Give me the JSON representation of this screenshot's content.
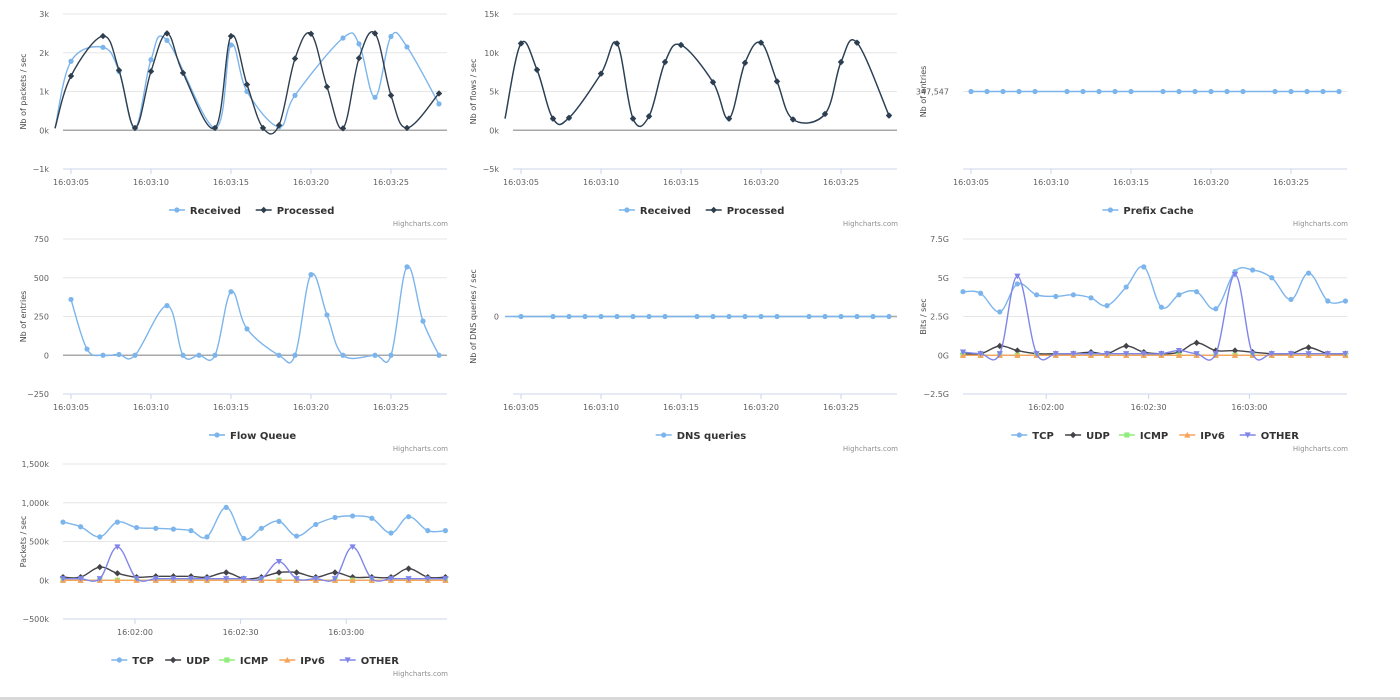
{
  "credits": "Highcharts.com",
  "colors": {
    "received": "#7cb5ec",
    "processed": "#2f3e4e",
    "tcp": "#7cb5ec",
    "udp": "#434348",
    "icmp": "#90ed7d",
    "ipv6": "#f7a35c",
    "other": "#8085e9",
    "grid": "#e6e6e6",
    "zero": "#a8a8a8"
  },
  "chart_data": [
    {
      "id": "packets",
      "type": "line",
      "ylabel": "Nb of packets / sec",
      "xticks": [
        "16:03:05",
        "16:03:10",
        "16:03:15",
        "16:03:20",
        "16:03:25"
      ],
      "yticks": [
        "3k",
        "2k",
        "1k",
        "0k",
        "−1k"
      ],
      "ylim": [
        -1000,
        3000
      ],
      "xlim": [
        0,
        24
      ],
      "x_tick_values": [
        0.5,
        5.5,
        10.5,
        15.5,
        20.5
      ],
      "y_tick_values": [
        3000,
        2000,
        1000,
        0,
        -1000
      ],
      "series": [
        {
          "name": "Received",
          "x": [
            -0.5,
            0.5,
            2.5,
            3.5,
            4.5,
            5.5,
            6.5,
            9.5,
            10.5,
            11.5,
            13.5,
            14.5,
            17.5,
            18.5,
            19.5,
            20.5,
            21.5,
            23.5
          ],
          "values": [
            50,
            1780,
            2140,
            1520,
            60,
            1820,
            2320,
            60,
            2200,
            1000,
            90,
            900,
            2380,
            2230,
            850,
            2420,
            2150,
            680
          ],
          "marker": "circle"
        },
        {
          "name": "Processed",
          "x": [
            -0.5,
            0.5,
            2.5,
            3.5,
            4.5,
            5.5,
            6.5,
            7.5,
            9.5,
            10.5,
            11.5,
            12.5,
            13.5,
            14.5,
            15.5,
            16.5,
            17.5,
            18.5,
            19.5,
            20.5,
            21.5,
            23.5
          ],
          "values": [
            50,
            1400,
            2430,
            1550,
            60,
            1520,
            2500,
            1480,
            60,
            2430,
            1180,
            60,
            130,
            1850,
            2490,
            1120,
            50,
            1860,
            2500,
            900,
            60,
            950
          ],
          "marker": "diamond"
        }
      ]
    },
    {
      "id": "flows",
      "type": "line",
      "ylabel": "Nb of flows / sec",
      "xticks": [
        "16:03:05",
        "16:03:10",
        "16:03:15",
        "16:03:20",
        "16:03:25"
      ],
      "yticks": [
        "15k",
        "10k",
        "5k",
        "0k",
        "−5k"
      ],
      "ylim": [
        -5000,
        15000
      ],
      "xlim": [
        0,
        24
      ],
      "x_tick_values": [
        0.5,
        5.5,
        10.5,
        15.5,
        20.5
      ],
      "y_tick_values": [
        15000,
        10000,
        5000,
        0,
        -5000
      ],
      "series": [
        {
          "name": "Received",
          "x": [
            -0.5,
            0.5,
            1.5,
            2.5,
            3.5,
            5.5,
            6.5,
            7.5,
            8.5,
            9.5,
            10.5,
            12.5,
            13.5,
            14.5,
            15.5,
            16.5,
            17.5,
            19.5,
            20.5,
            21.5,
            23.5
          ],
          "values": [
            1500,
            11200,
            7800,
            1500,
            1600,
            7300,
            11200,
            1500,
            1800,
            8800,
            11000,
            6200,
            1500,
            8700,
            11300,
            6300,
            1400,
            2100,
            8800,
            11300,
            1900
          ],
          "marker": "circle"
        },
        {
          "name": "Processed",
          "x": [
            -0.5,
            0.5,
            1.5,
            2.5,
            3.5,
            5.5,
            6.5,
            7.5,
            8.5,
            9.5,
            10.5,
            12.5,
            13.5,
            14.5,
            15.5,
            16.5,
            17.5,
            19.5,
            20.5,
            21.5,
            23.5
          ],
          "values": [
            1500,
            11200,
            7800,
            1500,
            1600,
            7300,
            11200,
            1500,
            1800,
            8800,
            11000,
            6200,
            1500,
            8700,
            11300,
            6300,
            1400,
            2100,
            8800,
            11300,
            1900
          ],
          "marker": "diamond"
        }
      ]
    },
    {
      "id": "prefix",
      "type": "line",
      "ylabel": "Nb of entries",
      "xticks": [
        "16:03:05",
        "16:03:10",
        "16:03:15",
        "16:03:20",
        "16:03:25"
      ],
      "yticks": [
        "347,547"
      ],
      "ylim": [
        0,
        1
      ],
      "xlim": [
        0,
        24
      ],
      "x_tick_values": [
        0.5,
        5.5,
        10.5,
        15.5,
        20.5
      ],
      "y_tick_values": [
        0.5
      ],
      "series": [
        {
          "name": "Prefix Cache",
          "x": [
            0.5,
            1.5,
            2.5,
            3.5,
            4.5,
            6.5,
            7.5,
            8.5,
            9.5,
            10.5,
            12.5,
            13.5,
            14.5,
            15.5,
            16.5,
            17.5,
            19.5,
            20.5,
            21.5,
            22.5,
            23.5
          ],
          "values": [
            0.5,
            0.5,
            0.5,
            0.5,
            0.5,
            0.5,
            0.5,
            0.5,
            0.5,
            0.5,
            0.5,
            0.5,
            0.5,
            0.5,
            0.5,
            0.5,
            0.5,
            0.5,
            0.5,
            0.5,
            0.5
          ],
          "marker": "circle"
        }
      ]
    },
    {
      "id": "flowqueue",
      "type": "line",
      "ylabel": "Nb of entries",
      "xticks": [
        "16:03:05",
        "16:03:10",
        "16:03:15",
        "16:03:20",
        "16:03:25"
      ],
      "yticks": [
        "750",
        "500",
        "250",
        "0",
        "−250"
      ],
      "ylim": [
        -250,
        750
      ],
      "xlim": [
        0,
        24
      ],
      "x_tick_values": [
        0.5,
        5.5,
        10.5,
        15.5,
        20.5
      ],
      "y_tick_values": [
        750,
        500,
        250,
        0,
        -250
      ],
      "series": [
        {
          "name": "Flow Queue",
          "x": [
            0.5,
            1.5,
            2.5,
            3.5,
            4.5,
            6.5,
            7.5,
            8.5,
            9.5,
            10.5,
            11.5,
            13.5,
            14.5,
            15.5,
            16.5,
            17.5,
            19.5,
            20.5,
            21.5,
            22.5,
            23.5
          ],
          "values": [
            360,
            40,
            0,
            5,
            0,
            320,
            0,
            0,
            0,
            410,
            170,
            0,
            0,
            520,
            260,
            0,
            0,
            0,
            570,
            220,
            0
          ],
          "marker": "circle"
        }
      ]
    },
    {
      "id": "dns",
      "type": "line",
      "ylabel": "Nb of DNS queries / sec",
      "xticks": [
        "16:03:05",
        "16:03:10",
        "16:03:15",
        "16:03:20",
        "16:03:25"
      ],
      "yticks": [
        "0"
      ],
      "ylim": [
        0,
        1
      ],
      "xlim": [
        0,
        24
      ],
      "x_tick_values": [
        0.5,
        5.5,
        10.5,
        15.5,
        20.5
      ],
      "y_tick_values": [
        0.5
      ],
      "series": [
        {
          "name": "DNS queries",
          "x": [
            -0.5,
            0.5,
            2.5,
            3.5,
            4.5,
            5.5,
            6.5,
            7.5,
            8.5,
            9.5,
            11.5,
            12.5,
            13.5,
            14.5,
            15.5,
            16.5,
            18.5,
            19.5,
            20.5,
            21.5,
            22.5,
            23.5
          ],
          "values": [
            0.5,
            0.5,
            0.5,
            0.5,
            0.5,
            0.5,
            0.5,
            0.5,
            0.5,
            0.5,
            0.5,
            0.5,
            0.5,
            0.5,
            0.5,
            0.5,
            0.5,
            0.5,
            0.5,
            0.5,
            0.5,
            0.5
          ],
          "marker": "circle"
        }
      ]
    },
    {
      "id": "bits",
      "type": "line",
      "ylabel": "Bits / sec",
      "xticks": [
        "16:02:00",
        "16:02:30",
        "16:03:00"
      ],
      "yticks": [
        "7.5G",
        "5G",
        "2.5G",
        "0G",
        "−2.5G"
      ],
      "ylim": [
        -2.5,
        7.5
      ],
      "xlim": [
        0,
        24
      ],
      "x_tick_values": [
        5.2,
        11.6,
        17.9
      ],
      "y_tick_values": [
        7.5,
        5,
        2.5,
        0,
        -2.5
      ],
      "series": [
        {
          "name": "TCP",
          "x": [
            0,
            1.1,
            2.3,
            3.4,
            4.6,
            5.8,
            6.9,
            8,
            9,
            10.2,
            11.3,
            12.4,
            13.5,
            14.6,
            15.8,
            17,
            18.1,
            19.3,
            20.5,
            21.6,
            22.8,
            23.9
          ],
          "values": [
            4.1,
            4,
            2.8,
            4.6,
            3.9,
            3.8,
            3.9,
            3.7,
            3.2,
            4.4,
            5.7,
            3.1,
            3.9,
            4.1,
            3,
            5.4,
            5.5,
            5,
            3.6,
            5.3,
            3.5,
            3.5
          ],
          "marker": "circle"
        },
        {
          "name": "UDP",
          "x": [
            0,
            1.1,
            2.3,
            3.4,
            4.6,
            5.8,
            6.9,
            8,
            9,
            10.2,
            11.3,
            12.4,
            13.5,
            14.6,
            15.8,
            17,
            18.1,
            19.3,
            20.5,
            21.6,
            22.8,
            23.9
          ],
          "values": [
            0.1,
            0.1,
            0.6,
            0.3,
            0.1,
            0.1,
            0.1,
            0.2,
            0.1,
            0.6,
            0.2,
            0.1,
            0.2,
            0.8,
            0.3,
            0.3,
            0.2,
            0.1,
            0.1,
            0.5,
            0.1,
            0.1
          ],
          "marker": "diamond"
        },
        {
          "name": "ICMP",
          "x": [
            0,
            1.1,
            2.3,
            3.4,
            4.6,
            5.8,
            6.9,
            8,
            9,
            10.2,
            11.3,
            12.4,
            13.5,
            14.6,
            15.8,
            17,
            18.1,
            19.3,
            20.5,
            21.6,
            22.8,
            23.9
          ],
          "values": [
            0,
            0,
            0,
            0,
            0,
            0,
            0,
            0,
            0,
            0,
            0,
            0,
            0,
            0,
            0,
            0,
            0,
            0,
            0,
            0,
            0,
            0
          ],
          "marker": "square"
        },
        {
          "name": "IPv6",
          "x": [
            0,
            1.1,
            2.3,
            3.4,
            4.6,
            5.8,
            6.9,
            8,
            9,
            10.2,
            11.3,
            12.4,
            13.5,
            14.6,
            15.8,
            17,
            18.1,
            19.3,
            20.5,
            21.6,
            22.8,
            23.9
          ],
          "values": [
            0,
            0,
            0,
            0,
            0,
            0,
            0,
            0,
            0,
            0,
            0,
            0,
            0,
            0,
            0,
            0,
            0,
            0,
            0,
            0,
            0,
            0
          ],
          "marker": "triangle"
        },
        {
          "name": "OTHER",
          "x": [
            0,
            1.1,
            2.3,
            3.4,
            4.6,
            5.8,
            6.9,
            8,
            9,
            10.2,
            11.3,
            12.4,
            13.5,
            14.6,
            15.8,
            17,
            18.1,
            19.3,
            20.5,
            21.6,
            22.8,
            23.9
          ],
          "values": [
            0.2,
            0.1,
            0.1,
            5.1,
            0.1,
            0.1,
            0.1,
            0.1,
            0.1,
            0.1,
            0.1,
            0.1,
            0.3,
            0.1,
            0.1,
            5.2,
            0.1,
            0.1,
            0.1,
            0.1,
            0.1,
            0.1
          ],
          "marker": "triangle-down"
        }
      ]
    },
    {
      "id": "pps",
      "type": "line",
      "ylabel": "Packets / sec",
      "xticks": [
        "16:02:00",
        "16:02:30",
        "16:03:00"
      ],
      "yticks": [
        "1,500k",
        "1,000k",
        "500k",
        "0k",
        "−500k"
      ],
      "ylim": [
        -500,
        1500
      ],
      "xlim": [
        0,
        24
      ],
      "x_tick_values": [
        4.5,
        11.1,
        17.7
      ],
      "y_tick_values": [
        1500,
        1000,
        500,
        0,
        -500
      ],
      "series": [
        {
          "name": "TCP",
          "x": [
            0,
            1.1,
            2.3,
            3.4,
            4.6,
            5.8,
            6.9,
            8,
            9,
            10.2,
            11.3,
            12.4,
            13.5,
            14.6,
            15.8,
            17,
            18.1,
            19.3,
            20.5,
            21.6,
            22.8,
            23.9
          ],
          "values": [
            750,
            690,
            560,
            750,
            680,
            670,
            660,
            640,
            560,
            940,
            540,
            670,
            760,
            570,
            720,
            810,
            830,
            800,
            610,
            820,
            640,
            640
          ],
          "marker": "circle"
        },
        {
          "name": "UDP",
          "x": [
            0,
            1.1,
            2.3,
            3.4,
            4.6,
            5.8,
            6.9,
            8,
            9,
            10.2,
            11.3,
            12.4,
            13.5,
            14.6,
            15.8,
            17,
            18.1,
            19.3,
            20.5,
            21.6,
            22.8,
            23.9
          ],
          "values": [
            40,
            40,
            170,
            90,
            40,
            50,
            50,
            50,
            40,
            100,
            20,
            40,
            100,
            100,
            40,
            100,
            40,
            40,
            40,
            150,
            40,
            40
          ],
          "marker": "diamond"
        },
        {
          "name": "ICMP",
          "x": [
            0,
            1.1,
            2.3,
            3.4,
            4.6,
            5.8,
            6.9,
            8,
            9,
            10.2,
            11.3,
            12.4,
            13.5,
            14.6,
            15.8,
            17,
            18.1,
            19.3,
            20.5,
            21.6,
            22.8,
            23.9
          ],
          "values": [
            0,
            0,
            0,
            0,
            0,
            0,
            0,
            0,
            0,
            0,
            0,
            0,
            0,
            0,
            0,
            0,
            0,
            0,
            0,
            0,
            0,
            0
          ],
          "marker": "square"
        },
        {
          "name": "IPv6",
          "x": [
            0,
            1.1,
            2.3,
            3.4,
            4.6,
            5.8,
            6.9,
            8,
            9,
            10.2,
            11.3,
            12.4,
            13.5,
            14.6,
            15.8,
            17,
            18.1,
            19.3,
            20.5,
            21.6,
            22.8,
            23.9
          ],
          "values": [
            0,
            0,
            0,
            0,
            0,
            0,
            0,
            0,
            0,
            0,
            0,
            0,
            0,
            0,
            0,
            0,
            0,
            0,
            0,
            0,
            0,
            0
          ],
          "marker": "triangle"
        },
        {
          "name": "OTHER",
          "x": [
            0,
            1.1,
            2.3,
            3.4,
            4.6,
            5.8,
            6.9,
            8,
            9,
            10.2,
            11.3,
            12.4,
            13.5,
            14.6,
            15.8,
            17,
            18.1,
            19.3,
            20.5,
            21.6,
            22.8,
            23.9
          ],
          "values": [
            20,
            20,
            20,
            430,
            20,
            20,
            20,
            20,
            20,
            20,
            20,
            20,
            240,
            20,
            20,
            20,
            430,
            20,
            20,
            20,
            20,
            20
          ],
          "marker": "triangle-down"
        }
      ]
    }
  ]
}
